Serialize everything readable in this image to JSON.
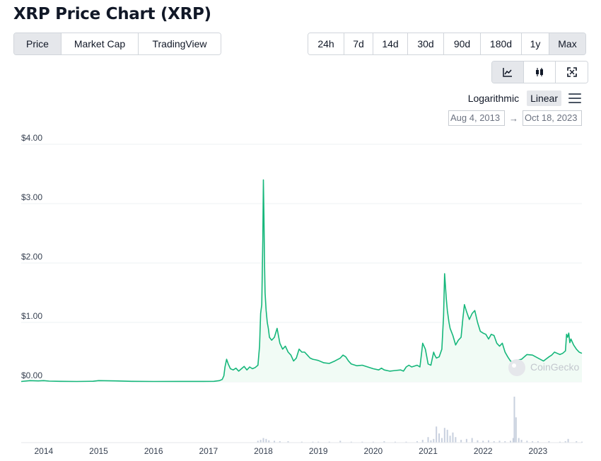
{
  "page": {
    "title": "XRP Price Chart (XRP)",
    "tabs": [
      {
        "label": "Price",
        "active": true
      },
      {
        "label": "Market Cap",
        "active": false
      },
      {
        "label": "TradingView",
        "active": false
      }
    ],
    "ranges": [
      {
        "label": "24h",
        "active": false
      },
      {
        "label": "7d",
        "active": false
      },
      {
        "label": "14d",
        "active": false
      },
      {
        "label": "30d",
        "active": false
      },
      {
        "label": "90d",
        "active": false
      },
      {
        "label": "180d",
        "active": false
      },
      {
        "label": "1y",
        "active": false
      },
      {
        "label": "Max",
        "active": true
      }
    ],
    "chart_types": [
      {
        "icon": "line-chart-icon",
        "active": true
      },
      {
        "icon": "candlestick-icon",
        "active": false
      },
      {
        "icon": "fullscreen-icon",
        "active": false
      }
    ],
    "scale": {
      "logarithmic": "Logarithmic",
      "linear": "Linear",
      "selected": "Linear"
    },
    "date_range": {
      "from": "Aug 4, 2013",
      "arrow": "→",
      "to": "Oct 18, 2023"
    },
    "watermark": "CoinGecko",
    "colors": {
      "line": "#16b77b",
      "fill": "#f1fbf5",
      "volume": "#c8d0de",
      "active_bg": "#e5e7eb",
      "border": "#d1d5db"
    }
  },
  "chart_data": {
    "type": "line",
    "title": "",
    "xlabel": "",
    "ylabel": "",
    "ylim": [
      0,
      4
    ],
    "y_ticks": [
      {
        "value": 0,
        "label": "$0.00"
      },
      {
        "value": 1,
        "label": "$1.00"
      },
      {
        "value": 2,
        "label": "$2.00"
      },
      {
        "value": 3,
        "label": "$3.00"
      },
      {
        "value": 4,
        "label": "$4.00"
      }
    ],
    "xlim": [
      2013.59,
      2023.8
    ],
    "x_ticks": [
      {
        "value": 2014,
        "label": "2014"
      },
      {
        "value": 2015,
        "label": "2015"
      },
      {
        "value": 2016,
        "label": "2016"
      },
      {
        "value": 2017,
        "label": "2017"
      },
      {
        "value": 2018,
        "label": "2018"
      },
      {
        "value": 2019,
        "label": "2019"
      },
      {
        "value": 2020,
        "label": "2020"
      },
      {
        "value": 2021,
        "label": "2021"
      },
      {
        "value": 2022,
        "label": "2022"
      },
      {
        "value": 2023,
        "label": "2023"
      }
    ],
    "grid": true,
    "legend": "none",
    "series": [
      {
        "x": [
          2013.59,
          2013.75,
          2013.9,
          2014.0,
          2014.1,
          2014.3,
          2014.6,
          2014.9,
          2015.0,
          2015.3,
          2015.6,
          2016.0,
          2016.5,
          2016.9,
          2017.1,
          2017.2,
          2017.25,
          2017.28,
          2017.3,
          2017.33,
          2017.36,
          2017.4,
          2017.45,
          2017.5,
          2017.55,
          2017.6,
          2017.65,
          2017.7,
          2017.75,
          2017.8,
          2017.85,
          2017.9,
          2017.93,
          2017.95,
          2017.97,
          2017.99,
          2018.0,
          2018.01,
          2018.02,
          2018.03,
          2018.05,
          2018.07,
          2018.09,
          2018.11,
          2018.15,
          2018.2,
          2018.25,
          2018.3,
          2018.35,
          2018.4,
          2018.45,
          2018.5,
          2018.55,
          2018.6,
          2018.65,
          2018.7,
          2018.75,
          2018.8,
          2018.85,
          2018.9,
          2018.95,
          2019.0,
          2019.1,
          2019.2,
          2019.3,
          2019.4,
          2019.45,
          2019.5,
          2019.55,
          2019.6,
          2019.7,
          2019.8,
          2019.9,
          2020.0,
          2020.1,
          2020.15,
          2020.2,
          2020.3,
          2020.4,
          2020.5,
          2020.55,
          2020.6,
          2020.65,
          2020.7,
          2020.8,
          2020.85,
          2020.88,
          2020.9,
          2020.95,
          2021.0,
          2021.05,
          2021.1,
          2021.12,
          2021.15,
          2021.2,
          2021.25,
          2021.28,
          2021.3,
          2021.33,
          2021.35,
          2021.38,
          2021.4,
          2021.45,
          2021.5,
          2021.55,
          2021.6,
          2021.63,
          2021.66,
          2021.7,
          2021.75,
          2021.8,
          2021.85,
          2021.9,
          2021.95,
          2022.0,
          2022.05,
          2022.1,
          2022.15,
          2022.2,
          2022.25,
          2022.3,
          2022.35,
          2022.4,
          2022.45,
          2022.5,
          2022.55,
          2022.6,
          2022.7,
          2022.8,
          2022.9,
          2023.0,
          2023.1,
          2023.2,
          2023.25,
          2023.3,
          2023.35,
          2023.4,
          2023.45,
          2023.5,
          2023.52,
          2023.54,
          2023.56,
          2023.58,
          2023.6,
          2023.65,
          2023.7,
          2023.75,
          2023.8
        ],
        "y": [
          0.006,
          0.02,
          0.015,
          0.02,
          0.012,
          0.008,
          0.006,
          0.01,
          0.02,
          0.015,
          0.008,
          0.006,
          0.007,
          0.007,
          0.008,
          0.02,
          0.04,
          0.1,
          0.25,
          0.38,
          0.3,
          0.22,
          0.2,
          0.23,
          0.18,
          0.22,
          0.26,
          0.2,
          0.25,
          0.22,
          0.24,
          0.28,
          0.6,
          1.15,
          1.3,
          2.4,
          3.4,
          2.8,
          2.0,
          1.5,
          1.2,
          1.0,
          0.9,
          0.75,
          0.7,
          0.75,
          0.9,
          0.65,
          0.55,
          0.6,
          0.5,
          0.45,
          0.35,
          0.4,
          0.55,
          0.5,
          0.5,
          0.45,
          0.4,
          0.38,
          0.37,
          0.36,
          0.32,
          0.31,
          0.35,
          0.4,
          0.45,
          0.42,
          0.35,
          0.3,
          0.27,
          0.28,
          0.25,
          0.22,
          0.2,
          0.23,
          0.2,
          0.18,
          0.19,
          0.2,
          0.18,
          0.25,
          0.28,
          0.25,
          0.28,
          0.25,
          0.48,
          0.65,
          0.55,
          0.3,
          0.28,
          0.5,
          0.45,
          0.4,
          0.42,
          0.55,
          1.1,
          1.82,
          1.4,
          1.2,
          1.0,
          0.9,
          0.78,
          0.62,
          0.7,
          0.75,
          1.05,
          1.3,
          1.18,
          1.05,
          1.15,
          1.2,
          1.0,
          0.85,
          0.82,
          0.8,
          0.72,
          0.8,
          0.78,
          0.65,
          0.6,
          0.65,
          0.5,
          0.42,
          0.35,
          0.32,
          0.36,
          0.38,
          0.46,
          0.45,
          0.4,
          0.35,
          0.42,
          0.45,
          0.5,
          0.48,
          0.46,
          0.48,
          0.52,
          0.8,
          0.75,
          0.82,
          0.66,
          0.72,
          0.62,
          0.55,
          0.5,
          0.48
        ]
      }
    ],
    "volume": {
      "x": [
        2017.9,
        2017.95,
        2018.0,
        2018.05,
        2018.1,
        2018.2,
        2018.3,
        2018.45,
        2018.7,
        2018.9,
        2019.0,
        2019.2,
        2019.4,
        2019.6,
        2019.8,
        2020.0,
        2020.2,
        2020.4,
        2020.6,
        2020.8,
        2020.9,
        2021.0,
        2021.05,
        2021.1,
        2021.15,
        2021.2,
        2021.25,
        2021.3,
        2021.35,
        2021.4,
        2021.45,
        2021.5,
        2021.6,
        2021.7,
        2021.8,
        2021.9,
        2022.0,
        2022.1,
        2022.2,
        2022.3,
        2022.4,
        2022.5,
        2022.55,
        2022.57,
        2022.6,
        2022.65,
        2022.7,
        2022.8,
        2022.9,
        2023.0,
        2023.2,
        2023.4,
        2023.5,
        2023.55,
        2023.7,
        2023.8
      ],
      "values": [
        0.04,
        0.06,
        0.1,
        0.08,
        0.05,
        0.04,
        0.03,
        0.03,
        0.02,
        0.02,
        0.02,
        0.02,
        0.04,
        0.02,
        0.02,
        0.02,
        0.03,
        0.02,
        0.02,
        0.03,
        0.06,
        0.12,
        0.05,
        0.08,
        0.35,
        0.2,
        0.1,
        0.32,
        0.28,
        0.15,
        0.22,
        0.12,
        0.06,
        0.08,
        0.1,
        0.05,
        0.04,
        0.05,
        0.03,
        0.04,
        0.03,
        0.04,
        0.1,
        1.0,
        0.55,
        0.1,
        0.06,
        0.04,
        0.03,
        0.03,
        0.03,
        0.02,
        0.03,
        0.08,
        0.03,
        0.02
      ]
    }
  }
}
